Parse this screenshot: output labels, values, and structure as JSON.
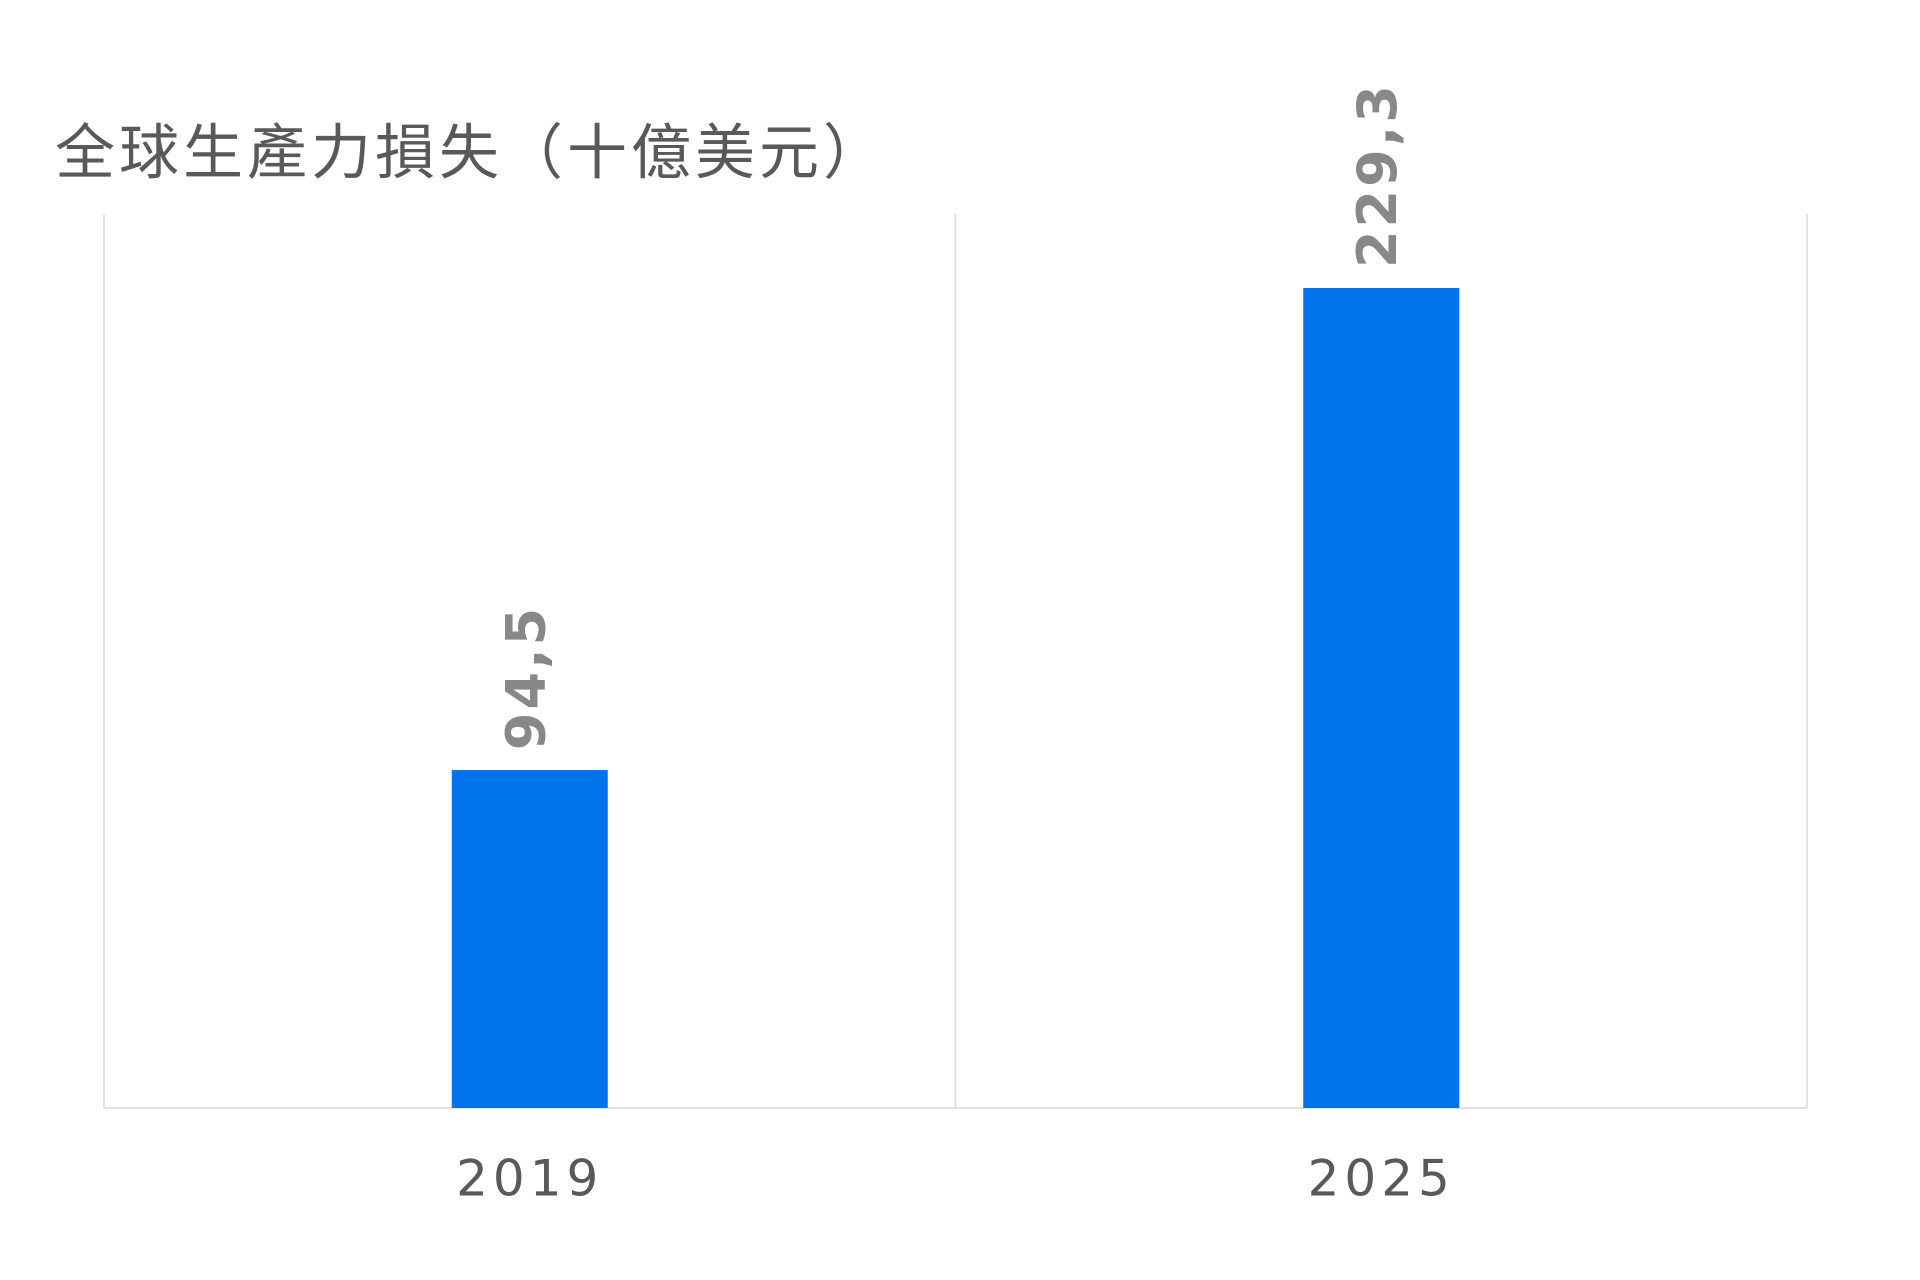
{
  "chart_data": {
    "type": "bar",
    "title": "全球生產力損失（十億美元）",
    "categories": [
      "2019",
      "2025"
    ],
    "values": [
      94.5,
      229.3
    ],
    "value_labels": [
      "94,5",
      "229,3"
    ],
    "color": "#0073ec",
    "ylim": [
      0,
      250
    ]
  }
}
